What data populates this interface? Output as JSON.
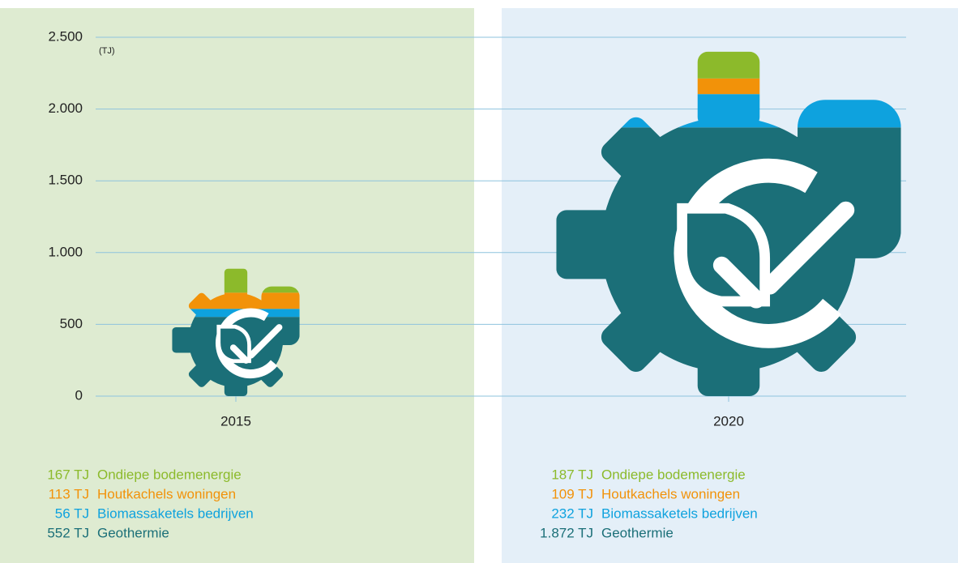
{
  "chart_data": {
    "type": "pictogram-stacked-bar",
    "y_label": "(TJ)",
    "categories": [
      "2015",
      "2020"
    ],
    "ylim": [
      0,
      2500
    ],
    "yticks": [
      0,
      500,
      {
        "value": 1000,
        "label": "1.000"
      },
      {
        "value": 1500,
        "label": "1.500"
      },
      {
        "value": 2000,
        "label": "2.000"
      },
      {
        "value": 2500,
        "label": "2.500"
      }
    ],
    "grid": true,
    "series": [
      {
        "name": "Geothermie",
        "color": "#1b6f78",
        "values": [
          552,
          1872
        ],
        "value_labels": [
          "552 TJ",
          "1.872 TJ"
        ]
      },
      {
        "name": "Biomassaketels bedrijven",
        "color": "#0ea2de",
        "values": [
          56,
          232
        ],
        "value_labels": [
          "56 TJ",
          "232 TJ"
        ]
      },
      {
        "name": "Houtkachels woningen",
        "color": "#f29209",
        "values": [
          113,
          109
        ],
        "value_labels": [
          "113 TJ",
          "109 TJ"
        ]
      },
      {
        "name": "Ondiepe bodemenergie",
        "color": "#8cba2b",
        "values": [
          167,
          187
        ],
        "value_labels": [
          "167 TJ",
          "187 TJ"
        ]
      }
    ]
  }
}
